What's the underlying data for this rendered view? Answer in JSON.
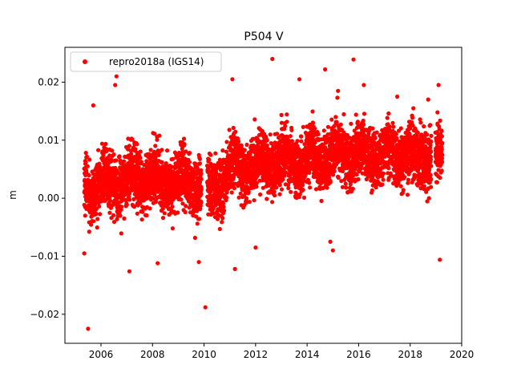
{
  "chart_data": {
    "type": "scatter",
    "title": "P504 V",
    "xlabel": "",
    "ylabel": "m",
    "xlim": [
      2004.6,
      2020.0
    ],
    "ylim": [
      -0.025,
      0.026
    ],
    "xticks": [
      2006,
      2008,
      2010,
      2012,
      2014,
      2016,
      2018,
      2020
    ],
    "xtick_labels": [
      "2006",
      "2008",
      "2010",
      "2012",
      "2014",
      "2016",
      "2018",
      "2020"
    ],
    "yticks": [
      -0.02,
      -0.01,
      0.0,
      0.01,
      0.02
    ],
    "ytick_labels": [
      "−0.02",
      "−0.01",
      "0.00",
      "0.01",
      "0.02"
    ],
    "grid": false,
    "legend_position": "upper-left",
    "series": [
      {
        "name": "repro2018a (IGS14)",
        "color": "#ff0000",
        "marker": "circle",
        "x_range": [
          2005.35,
          2019.25
        ],
        "gaps": [
          [
            2009.9,
            2010.12
          ],
          [
            2018.82,
            2018.98
          ]
        ],
        "trend": [
          [
            2005.4,
            0.002
          ],
          [
            2006.5,
            0.0025
          ],
          [
            2007.5,
            0.0035
          ],
          [
            2008.5,
            0.003
          ],
          [
            2009.5,
            0.003
          ],
          [
            2010.3,
            0.001
          ],
          [
            2011.0,
            0.005
          ],
          [
            2012.5,
            0.006
          ],
          [
            2014.0,
            0.0065
          ],
          [
            2015.5,
            0.0075
          ],
          [
            2017.0,
            0.0075
          ],
          [
            2019.2,
            0.007
          ]
        ],
        "spread": 0.0045,
        "highlighted_points": [
          [
            2005.5,
            -0.0225
          ],
          [
            2010.05,
            -0.0188
          ],
          [
            2006.6,
            0.021
          ],
          [
            2006.55,
            0.0195
          ],
          [
            2012.65,
            0.024
          ],
          [
            2015.8,
            0.0239
          ],
          [
            2019.1,
            0.0195
          ],
          [
            2005.7,
            0.016
          ],
          [
            2011.1,
            0.0205
          ],
          [
            2013.7,
            0.0205
          ],
          [
            2014.7,
            0.0222
          ],
          [
            2015.0,
            -0.009
          ],
          [
            2014.9,
            -0.0075
          ],
          [
            2011.2,
            -0.0122
          ],
          [
            2007.1,
            -0.0126
          ],
          [
            2005.35,
            -0.0095
          ],
          [
            2019.15,
            -0.0106
          ],
          [
            2008.2,
            -0.0112
          ],
          [
            2009.8,
            -0.011
          ],
          [
            2012.0,
            -0.0085
          ],
          [
            2016.2,
            0.0195
          ],
          [
            2017.5,
            0.0175
          ],
          [
            2018.7,
            0.017
          ],
          [
            2015.2,
            0.0185
          ]
        ]
      }
    ]
  }
}
